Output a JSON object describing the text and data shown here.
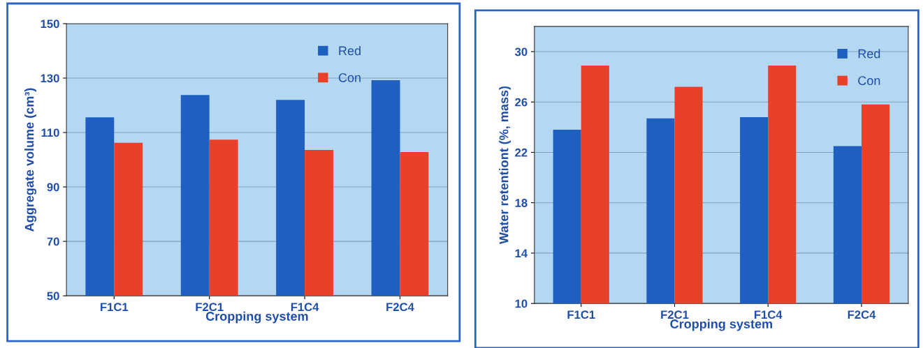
{
  "chart_data": [
    {
      "type": "bar",
      "xlabel": "Cropping system",
      "ylabel": "Aggregate volume (cm³)",
      "categories": [
        "F1C1",
        "F2C1",
        "F1C4",
        "F2C4"
      ],
      "series": [
        {
          "name": "Red",
          "color": "#1f5fbf",
          "values": [
            115.6,
            123.8,
            122,
            129.2
          ]
        },
        {
          "name": "Con",
          "color": "#e8402a",
          "values": [
            106.2,
            107.4,
            103.6,
            102.8
          ]
        }
      ],
      "ylim": [
        50,
        150
      ],
      "yticks": [
        50,
        70,
        90,
        110,
        130,
        150
      ],
      "grid": "y",
      "legend": "top right"
    },
    {
      "type": "bar",
      "xlabel": "Cropping system",
      "ylabel": "Water retentiont (%, mass)",
      "categories": [
        "F1C1",
        "F2C1",
        "F1C4",
        "F2C4"
      ],
      "series": [
        {
          "name": "Red",
          "color": "#1f5fbf",
          "values": [
            23.8,
            24.7,
            24.8,
            22.5
          ]
        },
        {
          "name": "Con",
          "color": "#e8402a",
          "values": [
            28.9,
            27.2,
            28.9,
            25.8
          ]
        }
      ],
      "ylim": [
        10,
        32
      ],
      "yticks": [
        10,
        14,
        18,
        22,
        26,
        30
      ],
      "grid": "y",
      "legend": "top right"
    }
  ]
}
